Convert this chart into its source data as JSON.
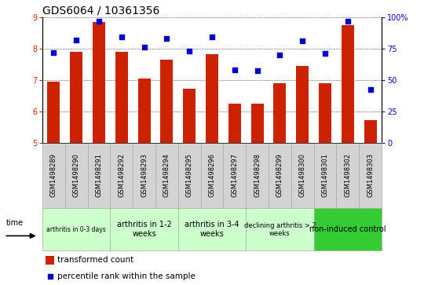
{
  "title": "GDS6064 / 10361356",
  "samples": [
    "GSM1498289",
    "GSM1498290",
    "GSM1498291",
    "GSM1498292",
    "GSM1498293",
    "GSM1498294",
    "GSM1498295",
    "GSM1498296",
    "GSM1498297",
    "GSM1498298",
    "GSM1498299",
    "GSM1498300",
    "GSM1498301",
    "GSM1498302",
    "GSM1498303"
  ],
  "bar_values": [
    6.95,
    7.9,
    8.85,
    7.9,
    7.05,
    7.65,
    6.72,
    7.82,
    6.25,
    6.25,
    6.88,
    7.45,
    6.88,
    8.75,
    5.72
  ],
  "scatter_values": [
    72,
    82,
    97,
    84,
    76,
    83,
    73,
    84,
    58,
    57,
    70,
    81,
    71,
    97,
    42
  ],
  "ylim_left": [
    5,
    9
  ],
  "ylim_right": [
    0,
    100
  ],
  "yticks_left": [
    5,
    6,
    7,
    8,
    9
  ],
  "yticks_right": [
    0,
    25,
    50,
    75,
    100
  ],
  "bar_color": "#cc2200",
  "scatter_color": "#0000cc",
  "background_color": "#ffffff",
  "grid_color": "#000000",
  "groups": [
    {
      "label": "arthritis in 0-3 days",
      "start": 0,
      "end": 3,
      "color": "#ccffcc",
      "fontsize": 5.5
    },
    {
      "label": "arthritis in 1-2\nweeks",
      "start": 3,
      "end": 6,
      "color": "#ccffcc",
      "fontsize": 7
    },
    {
      "label": "arthritis in 3-4\nweeks",
      "start": 6,
      "end": 9,
      "color": "#ccffcc",
      "fontsize": 7
    },
    {
      "label": "declining arthritis > 2\nweeks",
      "start": 9,
      "end": 12,
      "color": "#ccffcc",
      "fontsize": 6
    },
    {
      "label": "non-induced control",
      "start": 12,
      "end": 15,
      "color": "#33cc33",
      "fontsize": 7
    }
  ],
  "legend_bar_label": "transformed count",
  "legend_scatter_label": "percentile rank within the sample",
  "title_fontsize": 10,
  "tick_fontsize": 7,
  "sample_fontsize": 6,
  "group_fontsize": 7
}
